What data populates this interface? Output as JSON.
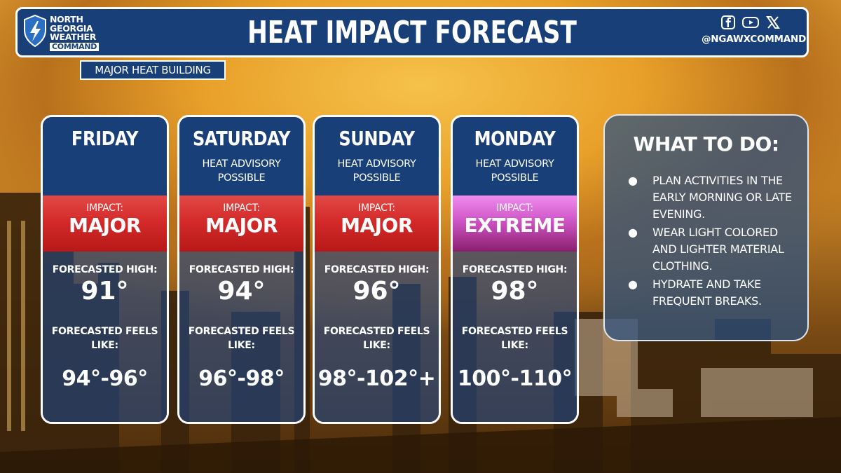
{
  "brand": {
    "line1": "NORTH",
    "line2": "GEORGIA",
    "line3": "WEATHER",
    "line4": "COMMAND"
  },
  "title": "HEAT IMPACT FORECAST",
  "social": {
    "icons": [
      "facebook-icon",
      "youtube-icon",
      "x-icon"
    ],
    "handle": "@NGAWXCOMMAND"
  },
  "subtitle": "MAJOR HEAT BUILDING",
  "days": [
    {
      "day": "FRIDAY",
      "advisory_line1": "",
      "advisory_line2": "",
      "impact_label": "IMPACT:",
      "impact_level": "MAJOR",
      "high_label": "FORECASTED HIGH:",
      "high": "91°",
      "feels_label_1": "FORECASTED FEELS",
      "feels_label_2": "LIKE:",
      "feels": "94°-96°"
    },
    {
      "day": "SATURDAY",
      "advisory_line1": "HEAT ADVISORY",
      "advisory_line2": "POSSIBLE",
      "impact_label": "IMPACT:",
      "impact_level": "MAJOR",
      "high_label": "FORECASTED HIGH:",
      "high": "94°",
      "feels_label_1": "FORECASTED FEELS",
      "feels_label_2": "LIKE:",
      "feels": "96°-98°"
    },
    {
      "day": "SUNDAY",
      "advisory_line1": "HEAT ADVISORY",
      "advisory_line2": "POSSIBLE",
      "impact_label": "IMPACT:",
      "impact_level": "MAJOR",
      "high_label": "FORECASTED HIGH:",
      "high": "96°",
      "feels_label_1": "FORECASTED FEELS",
      "feels_label_2": "LIKE:",
      "feels": "98°-102°+"
    },
    {
      "day": "MONDAY",
      "advisory_line1": "HEAT ADVISORY",
      "advisory_line2": "POSSIBLE",
      "impact_label": "IMPACT:",
      "impact_level": "EXTREME",
      "high_label": "FORECASTED HIGH:",
      "high": "98°",
      "feels_label_1": "FORECASTED FEELS",
      "feels_label_2": "LIKE:",
      "feels": "100°-110°"
    }
  ],
  "todo": {
    "title": "WHAT TO DO:",
    "items": [
      "PLAN ACTIVITIES IN THE EARLY MORNING OR LATE EVENING.",
      "WEAR LIGHT COLORED AND LIGHTER MATERIAL CLOTHING.",
      "HYDRATE AND TAKE FREQUENT BREAKS."
    ]
  },
  "colors": {
    "navy": "#183f78",
    "major_red": "#d42a2a",
    "extreme_magenta": "#cf55c6",
    "sky_orange": "#e8a02a"
  }
}
